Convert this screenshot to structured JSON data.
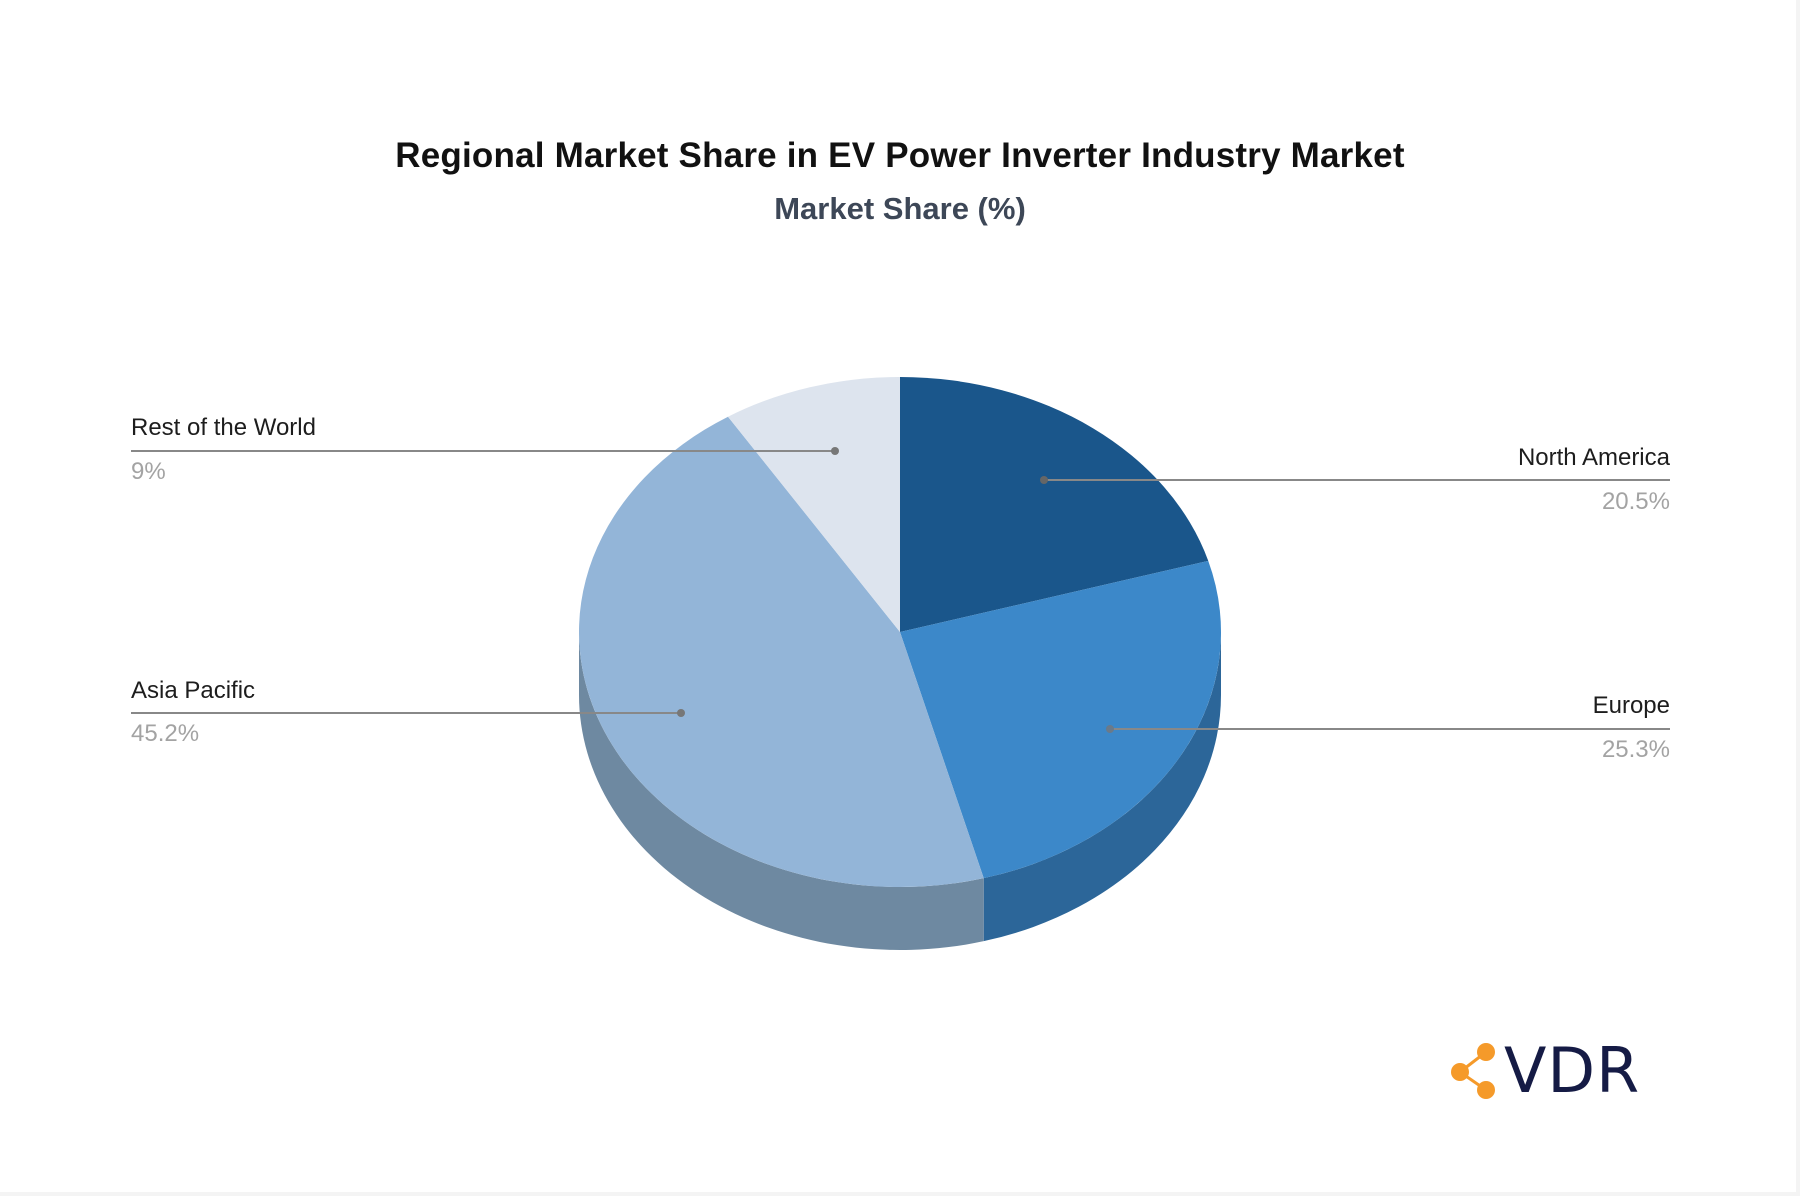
{
  "chart": {
    "title": "Regional Market Share in EV Power Inverter Industry Market",
    "subtitle": "Market Share (%)"
  },
  "labels": {
    "rest_of_world": {
      "name": "Rest of the World",
      "value": "9%"
    },
    "north_america": {
      "name": "North America",
      "value": "20.5%"
    },
    "asia_pacific": {
      "name": "Asia Pacific",
      "value": "45.2%"
    },
    "europe": {
      "name": "Europe",
      "value": "25.3%"
    }
  },
  "colors": {
    "north_america": "#1a568b",
    "europe": "#3c88c9",
    "asia_pacific": "#93b5d8",
    "rest_of_world": "#dde4ee",
    "north_america_side": "#14456f",
    "europe_side": "#2c6699",
    "asia_pacific_side": "#6e89a1",
    "rest_of_world_side": "#b1b8c2",
    "leader_line": "#888888",
    "logo_orange": "#f59a2a",
    "logo_navy": "#151b45"
  },
  "logo": {
    "text": "VDR"
  },
  "chart_data": {
    "type": "pie",
    "style": "3d",
    "title": "Regional Market Share in EV Power Inverter Industry Market",
    "subtitle": "Market Share (%)",
    "categories": [
      "North America",
      "Europe",
      "Asia Pacific",
      "Rest of the World"
    ],
    "values": [
      20.5,
      25.3,
      45.2,
      9
    ],
    "unit": "%",
    "start_angle": "12 o'clock, clockwise",
    "legend": "none (leader-line labels)"
  }
}
